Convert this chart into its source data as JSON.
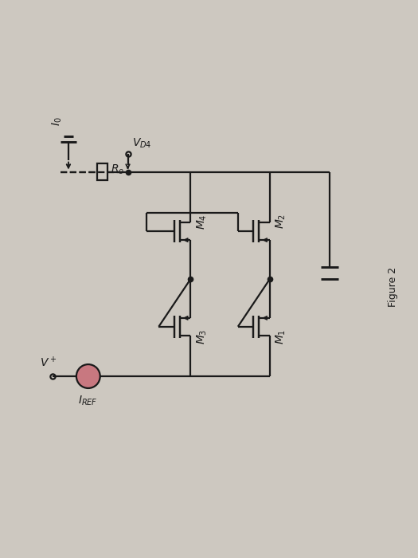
{
  "bg_color": "#cdc8c0",
  "line_color": "#1a1a1a",
  "lw": 1.6,
  "fig_width": 5.25,
  "fig_height": 7.0,
  "figure_label": "Figure 2",
  "labels": {
    "I0": "$I_0$",
    "R0": "$R_o$",
    "VD4": "$V_{D4}$",
    "M4": "$M_4$",
    "M3": "$M_3$",
    "M2": "$M_2$",
    "M1": "$M_1$",
    "IREF": "$I_{REF}$",
    "Vplus": "$V^+$"
  },
  "current_source_color": "#c87880"
}
